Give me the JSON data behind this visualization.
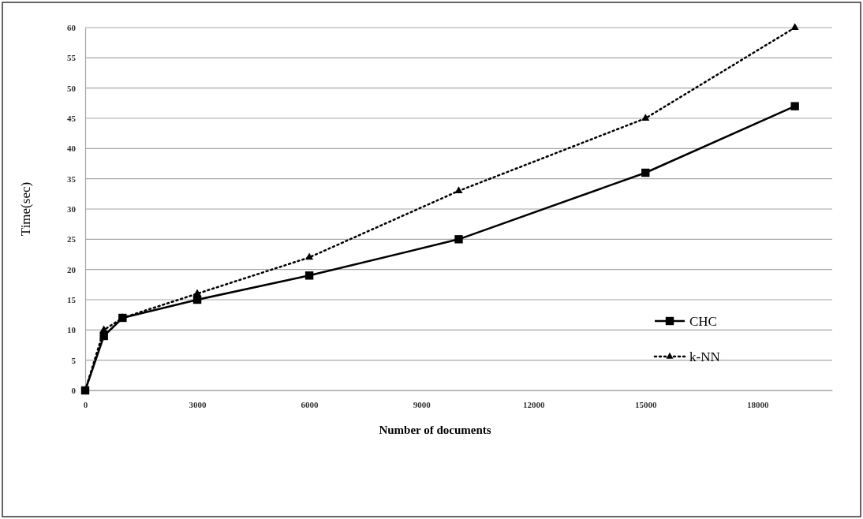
{
  "chart_data": {
    "type": "line",
    "xlabel": "Number of documents",
    "ylabel": "Time(sec)",
    "x": [
      0,
      500,
      1000,
      3000,
      6000,
      10000,
      15000,
      19000
    ],
    "series": [
      {
        "name": "CHC",
        "color": "#000000",
        "values": [
          0,
          9,
          12,
          15,
          19,
          25,
          36,
          47
        ],
        "marker": "square",
        "line_style": "solid"
      },
      {
        "name": "k-NN",
        "color": "#000000",
        "values": [
          0,
          10,
          12,
          16,
          22,
          33,
          45,
          60
        ],
        "marker": "triangle",
        "line_style": "dotted"
      }
    ],
    "xlim": [
      0,
      20000
    ],
    "xticks": [
      0,
      3000,
      6000,
      9000,
      12000,
      15000,
      18000
    ],
    "ylim": [
      0,
      60
    ],
    "yticks": [
      0,
      5,
      10,
      15,
      20,
      25,
      30,
      35,
      40,
      45,
      50,
      55,
      60
    ],
    "grid": "y",
    "legend": "bottom right"
  }
}
